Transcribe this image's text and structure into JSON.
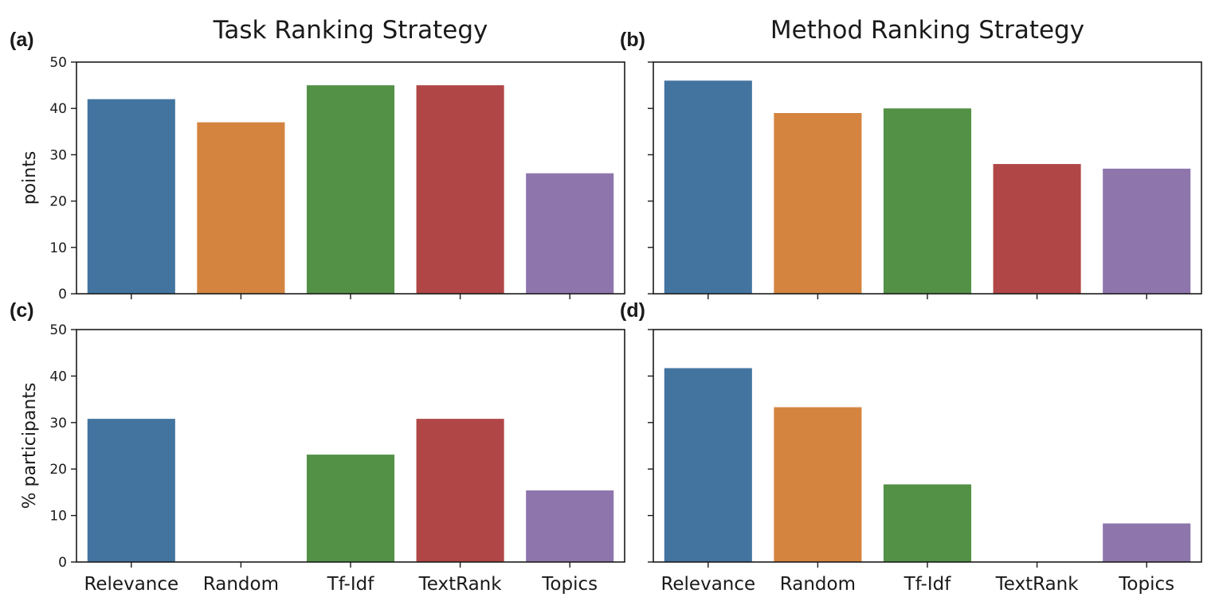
{
  "chart_data": [
    {
      "panel": "(a)",
      "type": "bar",
      "title": "Task Ranking Strategy",
      "ylabel": "points",
      "xlabel": "",
      "ylim": [
        0,
        50
      ],
      "yticks": [
        "0",
        "10",
        "20",
        "30",
        "40",
        "50"
      ],
      "categories": [
        "Relevance",
        "Random",
        "Tf-Idf",
        "TextRank",
        "Topics"
      ],
      "values": [
        42,
        37,
        45,
        45,
        26
      ],
      "show_x_tick_labels": false,
      "show_y_tick_labels": true
    },
    {
      "panel": "(b)",
      "type": "bar",
      "title": "Method Ranking Strategy",
      "ylabel": "",
      "xlabel": "",
      "ylim": [
        0,
        50
      ],
      "yticks": [
        "0",
        "10",
        "20",
        "30",
        "40",
        "50"
      ],
      "categories": [
        "Relevance",
        "Random",
        "Tf-Idf",
        "TextRank",
        "Topics"
      ],
      "values": [
        46,
        39,
        40,
        28,
        27
      ],
      "show_x_tick_labels": false,
      "show_y_tick_labels": false
    },
    {
      "panel": "(c)",
      "type": "bar",
      "title": "",
      "ylabel": "% participants",
      "xlabel": "",
      "ylim": [
        0,
        50
      ],
      "yticks": [
        "0",
        "10",
        "20",
        "30",
        "40",
        "50"
      ],
      "categories": [
        "Relevance",
        "Random",
        "Tf-Idf",
        "TextRank",
        "Topics"
      ],
      "values": [
        30.8,
        0,
        23.1,
        30.8,
        15.4
      ],
      "show_x_tick_labels": true,
      "show_y_tick_labels": true
    },
    {
      "panel": "(d)",
      "type": "bar",
      "title": "",
      "ylabel": "",
      "xlabel": "",
      "ylim": [
        0,
        50
      ],
      "yticks": [
        "0",
        "10",
        "20",
        "30",
        "40",
        "50"
      ],
      "categories": [
        "Relevance",
        "Random",
        "Tf-Idf",
        "TextRank",
        "Topics"
      ],
      "values": [
        41.7,
        33.3,
        16.7,
        0,
        8.3
      ],
      "show_x_tick_labels": true,
      "show_y_tick_labels": false
    }
  ],
  "colors": {
    "Relevance": "#4374a0",
    "Random": "#d4843f",
    "Tf-Idf": "#529146",
    "TextRank": "#b04746",
    "Topics": "#8e76ad"
  }
}
